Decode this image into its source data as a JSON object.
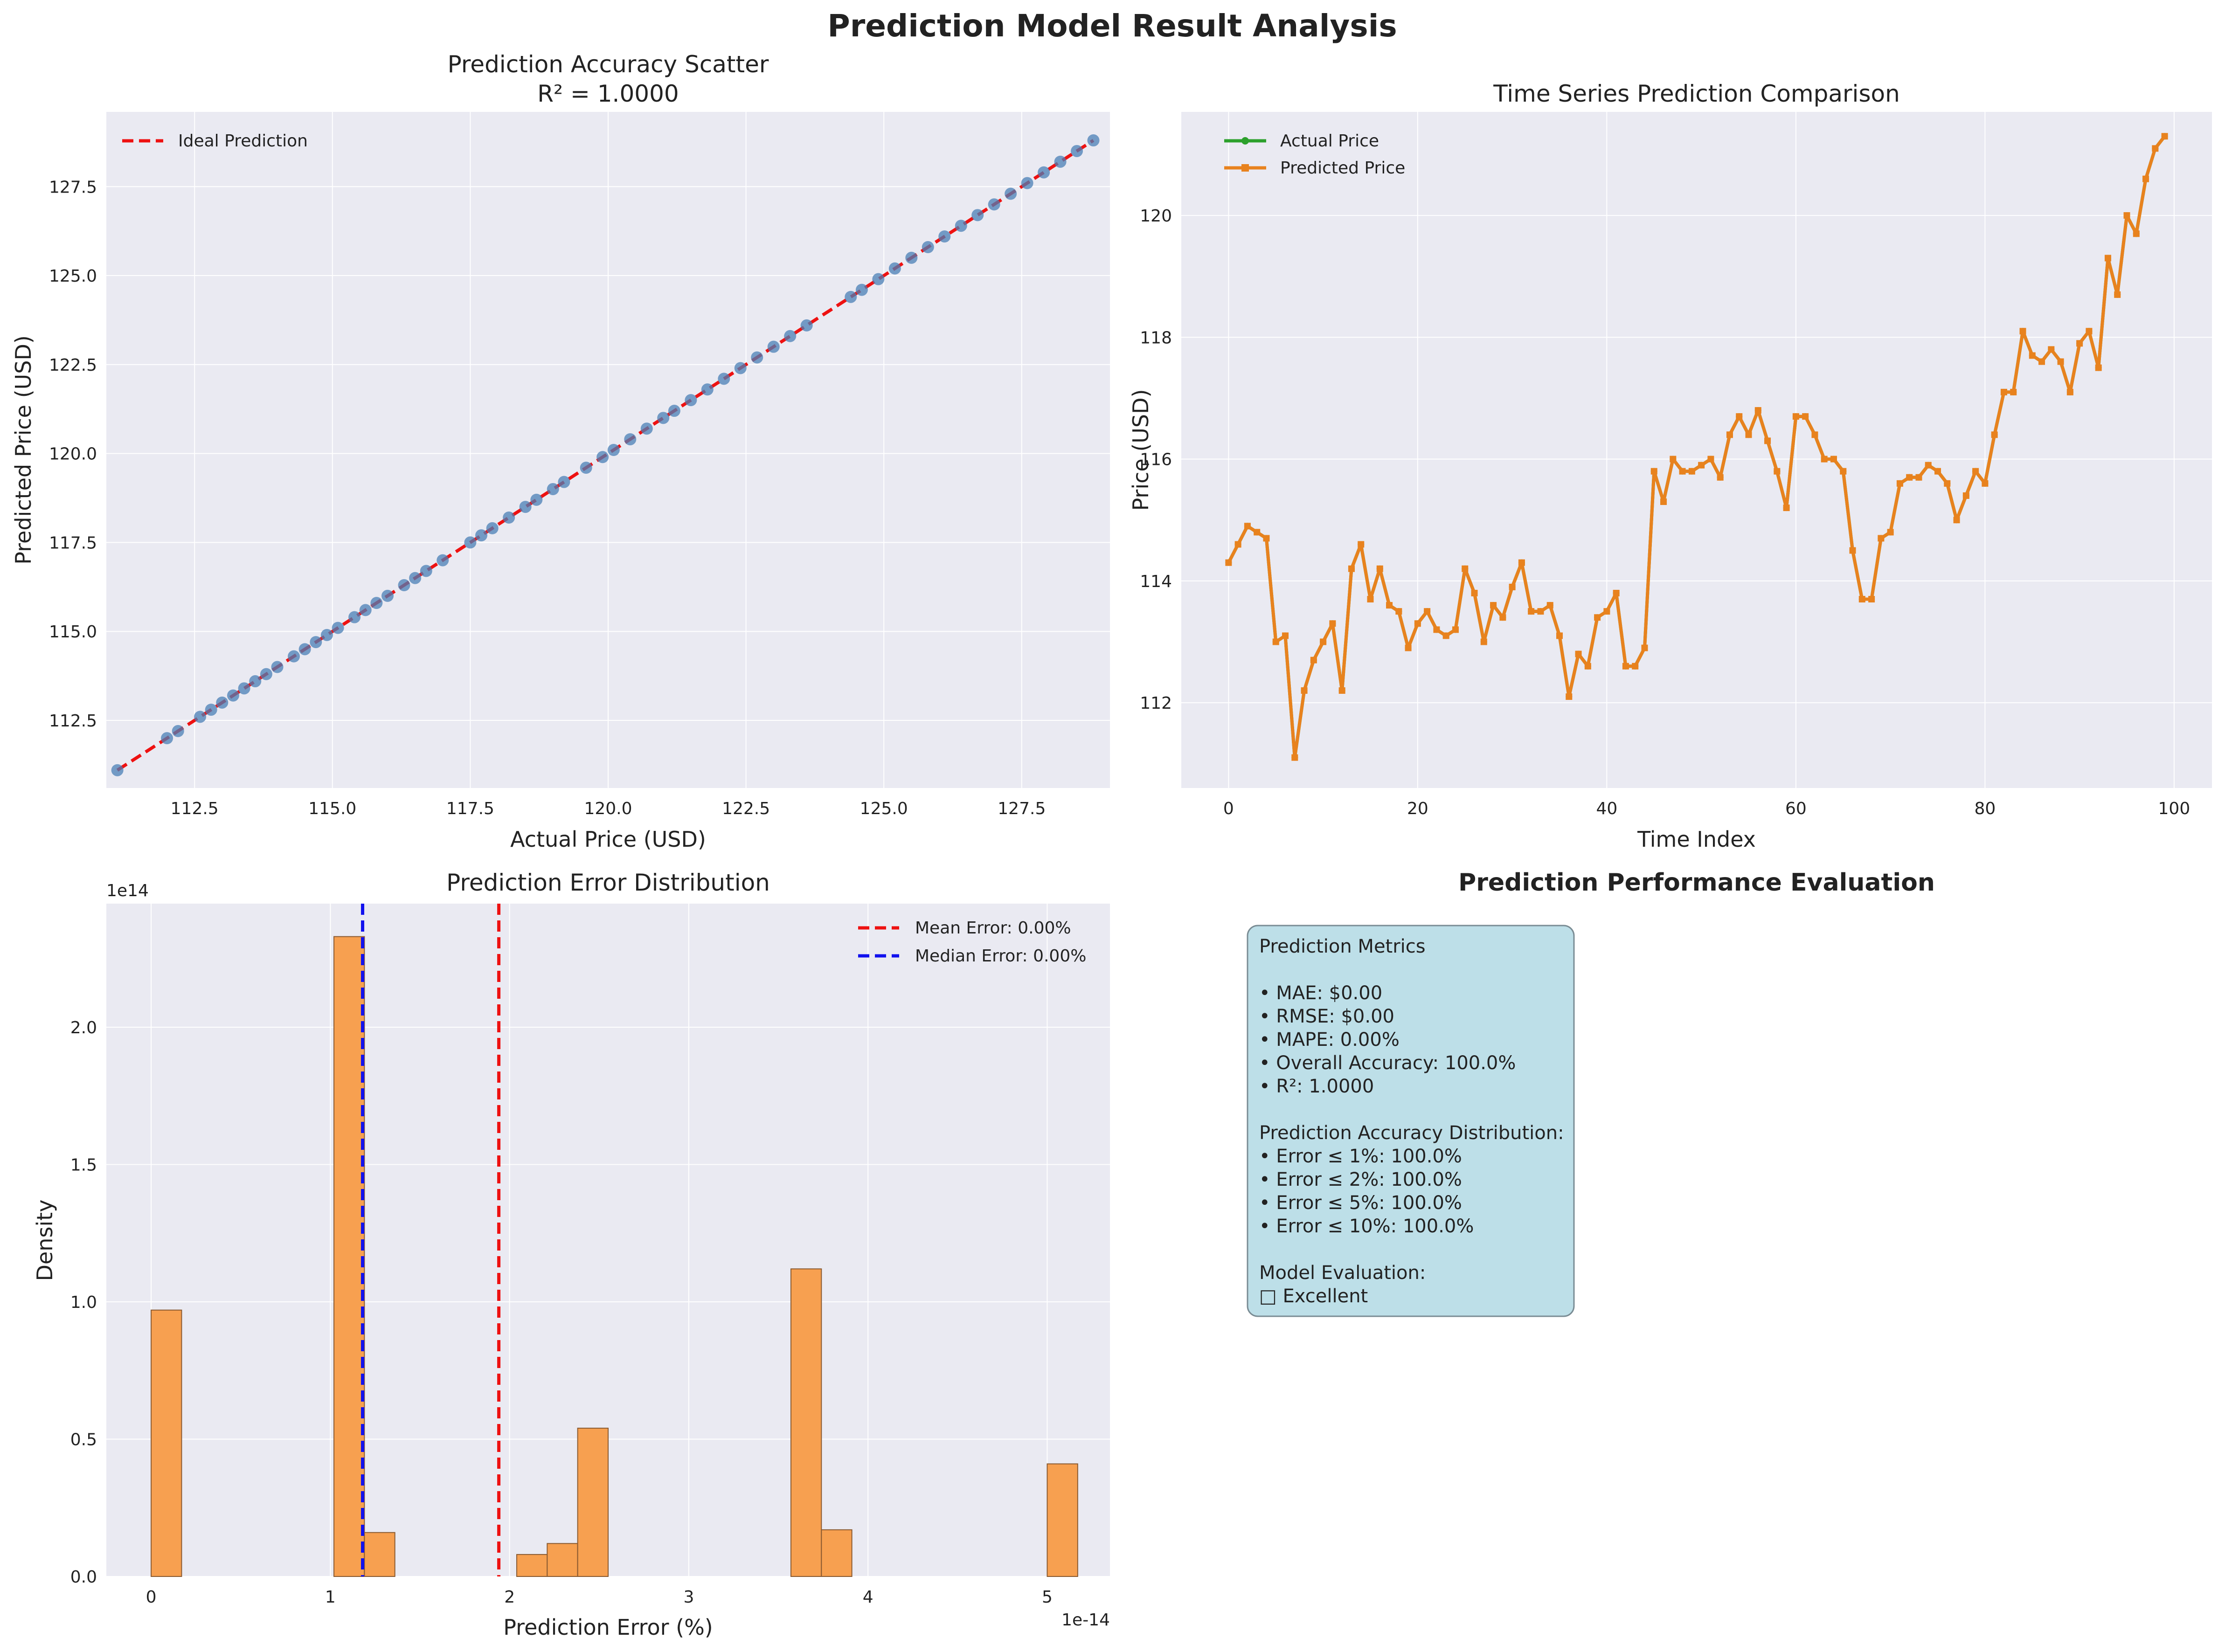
{
  "figure_title": "Prediction Model Result Analysis",
  "colors": {
    "panel_bg": "#eaeaf2",
    "grid": "#ffffff",
    "ideal_line": "#ee1111",
    "scatter_point": "#4a7fb5",
    "actual_line": "#2ca02c",
    "predicted_line": "#e8821e",
    "hist_bar": "#f7a050",
    "mean_line": "#ee1111",
    "median_line": "#1111ee",
    "metrics_box": "#bddfe8"
  },
  "chart_data": [
    {
      "type": "scatter",
      "title": "Prediction Accuracy Scatter",
      "subtitle": "R² = 1.0000",
      "xlabel": "Actual Price (USD)",
      "ylabel": "Predicted Price (USD)",
      "xlim": [
        110.9,
        129.1
      ],
      "ylim": [
        110.6,
        129.6
      ],
      "xticks": [
        112.5,
        115.0,
        117.5,
        120.0,
        122.5,
        125.0,
        127.5
      ],
      "xtick_labels": [
        "112.5",
        "115.0",
        "117.5",
        "120.0",
        "122.5",
        "125.0",
        "127.5"
      ],
      "yticks": [
        112.5,
        115.0,
        117.5,
        120.0,
        122.5,
        125.0,
        127.5
      ],
      "ytick_labels": [
        "112.5",
        "115.0",
        "117.5",
        "120.0",
        "122.5",
        "125.0",
        "127.5"
      ],
      "grid": true,
      "legend_position": "top-left",
      "legend": [
        "Ideal Prediction"
      ],
      "ideal_line": [
        [
          111.1,
          111.1
        ],
        [
          128.8,
          128.8
        ]
      ],
      "x": [
        111.1,
        112.0,
        112.2,
        112.6,
        112.8,
        113.0,
        113.2,
        113.4,
        113.6,
        113.8,
        114.0,
        114.3,
        114.5,
        114.7,
        114.9,
        115.1,
        115.4,
        115.6,
        115.8,
        116.0,
        116.3,
        116.5,
        116.7,
        117.0,
        117.5,
        117.7,
        117.9,
        118.2,
        118.5,
        118.7,
        119.0,
        119.2,
        119.6,
        119.9,
        120.1,
        120.4,
        120.7,
        121.0,
        121.2,
        121.5,
        121.8,
        122.1,
        122.4,
        122.7,
        123.0,
        123.3,
        123.6,
        124.4,
        124.6,
        124.9,
        125.2,
        125.5,
        125.8,
        126.1,
        126.4,
        126.7,
        127.0,
        127.3,
        127.6,
        127.9,
        128.2,
        128.5,
        128.8
      ],
      "y": [
        111.1,
        112.0,
        112.2,
        112.6,
        112.8,
        113.0,
        113.2,
        113.4,
        113.6,
        113.8,
        114.0,
        114.3,
        114.5,
        114.7,
        114.9,
        115.1,
        115.4,
        115.6,
        115.8,
        116.0,
        116.3,
        116.5,
        116.7,
        117.0,
        117.5,
        117.7,
        117.9,
        118.2,
        118.5,
        118.7,
        119.0,
        119.2,
        119.6,
        119.9,
        120.1,
        120.4,
        120.7,
        121.0,
        121.2,
        121.5,
        121.8,
        122.1,
        122.4,
        122.7,
        123.0,
        123.3,
        123.6,
        124.4,
        124.6,
        124.9,
        125.2,
        125.5,
        125.8,
        126.1,
        126.4,
        126.7,
        127.0,
        127.3,
        127.6,
        127.9,
        128.2,
        128.5,
        128.8
      ]
    },
    {
      "type": "line",
      "title": "Time Series Prediction Comparison",
      "xlabel": "Time Index",
      "ylabel": "Price (USD)",
      "xlim": [
        -5,
        104
      ],
      "ylim": [
        110.6,
        121.7
      ],
      "xticks": [
        0,
        20,
        40,
        60,
        80,
        100
      ],
      "xtick_labels": [
        "0",
        "20",
        "40",
        "60",
        "80",
        "100"
      ],
      "yticks": [
        112,
        114,
        116,
        118,
        120
      ],
      "ytick_labels": [
        "112",
        "114",
        "116",
        "118",
        "120"
      ],
      "grid": true,
      "legend_position": "top-left",
      "series": [
        {
          "name": "Actual Price",
          "values": [
            114.3,
            114.6,
            114.9,
            114.8,
            114.7,
            113.0,
            113.1,
            111.1,
            112.2,
            112.7,
            113.0,
            113.3,
            112.2,
            114.2,
            114.6,
            113.7,
            114.2,
            113.6,
            113.5,
            112.9,
            113.3,
            113.5,
            113.2,
            113.1,
            113.2,
            114.2,
            113.8,
            113.0,
            113.6,
            113.4,
            113.9,
            114.3,
            113.5,
            113.5,
            113.6,
            113.1,
            112.1,
            112.8,
            112.6,
            113.4,
            113.5,
            113.8,
            112.6,
            112.6,
            112.9,
            115.8,
            115.3,
            116.0,
            115.8,
            115.8,
            115.9,
            116.0,
            115.7,
            116.4,
            116.7,
            116.4,
            116.8,
            116.3,
            115.8,
            115.2,
            116.7,
            116.7,
            116.4,
            116.0,
            116.0,
            115.8,
            114.5,
            113.7,
            113.7,
            114.7,
            114.8,
            115.6,
            115.7,
            115.7,
            115.9,
            115.8,
            115.6,
            115.0,
            115.4,
            115.8,
            115.6,
            116.4,
            117.1,
            117.1,
            118.1,
            117.7,
            117.6,
            117.8,
            117.6,
            117.1,
            117.9,
            118.1,
            117.5,
            119.3,
            118.7,
            120.0,
            119.7,
            120.6,
            121.1,
            121.3
          ]
        },
        {
          "name": "Predicted Price",
          "values": [
            114.3,
            114.6,
            114.9,
            114.8,
            114.7,
            113.0,
            113.1,
            111.1,
            112.2,
            112.7,
            113.0,
            113.3,
            112.2,
            114.2,
            114.6,
            113.7,
            114.2,
            113.6,
            113.5,
            112.9,
            113.3,
            113.5,
            113.2,
            113.1,
            113.2,
            114.2,
            113.8,
            113.0,
            113.6,
            113.4,
            113.9,
            114.3,
            113.5,
            113.5,
            113.6,
            113.1,
            112.1,
            112.8,
            112.6,
            113.4,
            113.5,
            113.8,
            112.6,
            112.6,
            112.9,
            115.8,
            115.3,
            116.0,
            115.8,
            115.8,
            115.9,
            116.0,
            115.7,
            116.4,
            116.7,
            116.4,
            116.8,
            116.3,
            115.8,
            115.2,
            116.7,
            116.7,
            116.4,
            116.0,
            116.0,
            115.8,
            114.5,
            113.7,
            113.7,
            114.7,
            114.8,
            115.6,
            115.7,
            115.7,
            115.9,
            115.8,
            115.6,
            115.0,
            115.4,
            115.8,
            115.6,
            116.4,
            117.1,
            117.1,
            118.1,
            117.7,
            117.6,
            117.8,
            117.6,
            117.1,
            117.9,
            118.1,
            117.5,
            119.3,
            118.7,
            120.0,
            119.7,
            120.6,
            121.1,
            121.3
          ]
        }
      ]
    },
    {
      "type": "bar",
      "title": "Prediction Error Distribution",
      "xlabel": "Prediction Error (%)",
      "ylabel": "Density",
      "x_offset_label": "1e-14",
      "y_offset_label": "1e14",
      "xlim": [
        -0.25,
        5.35
      ],
      "ylim": [
        0,
        2.45
      ],
      "xticks": [
        0,
        1,
        2,
        3,
        4,
        5
      ],
      "xtick_labels": [
        "0",
        "1",
        "2",
        "3",
        "4",
        "5"
      ],
      "yticks": [
        0.0,
        0.5,
        1.0,
        1.5,
        2.0
      ],
      "ytick_labels": [
        "0.0",
        "0.5",
        "1.0",
        "1.5",
        "2.0"
      ],
      "grid": true,
      "legend_position": "top-right",
      "bin_width": 0.17,
      "bins": [
        0.0,
        1.02,
        1.19,
        2.04,
        2.21,
        2.38,
        3.57,
        3.74,
        5.0
      ],
      "values": [
        0.97,
        2.33,
        0.16,
        0.08,
        0.12,
        0.54,
        1.12,
        0.17,
        0.41
      ],
      "mean_error": 1.94,
      "median_error": 1.18,
      "legend": [
        "Mean Error: 0.00%",
        "Median Error: 0.00%"
      ]
    }
  ],
  "metrics_panel": {
    "title": "Prediction Performance Evaluation",
    "lines": [
      "Prediction Metrics",
      "",
      "• MAE: $0.00",
      "• RMSE: $0.00",
      "• MAPE: 0.00%",
      "• Overall Accuracy: 100.0%",
      "• R²: 1.0000",
      "",
      "Prediction Accuracy Distribution:",
      "• Error ≤ 1%: 100.0%",
      "• Error ≤ 2%: 100.0%",
      "• Error ≤ 5%: 100.0%",
      "• Error ≤ 10%: 100.0%",
      "",
      "Model Evaluation:",
      "□ Excellent"
    ]
  }
}
